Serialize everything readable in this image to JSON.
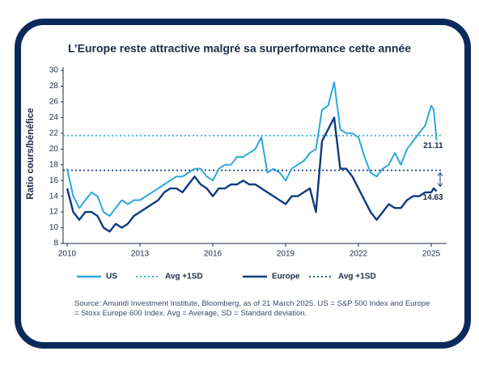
{
  "chart_data": {
    "type": "line",
    "title": "L’Europe reste attractive malgré sa surperformance cette année",
    "y_label": "Ratio cours/bénéfice",
    "source": "Source: Amundi Investment Institute, Bloomberg, as of 21 March 2025. US = S&P 500 Index and Europe = Stoxx Europe 600 Index. Avg = Average, SD = Standard deviation.",
    "x": [
      2010,
      2010.25,
      2010.5,
      2010.75,
      2011,
      2011.25,
      2011.5,
      2011.75,
      2012,
      2012.25,
      2012.5,
      2012.75,
      2013,
      2013.25,
      2013.5,
      2013.75,
      2014,
      2014.25,
      2014.5,
      2014.75,
      2015,
      2015.25,
      2015.5,
      2015.75,
      2016,
      2016.25,
      2016.5,
      2016.75,
      2017,
      2017.25,
      2017.5,
      2017.75,
      2018,
      2018.25,
      2018.5,
      2018.75,
      2019,
      2019.25,
      2019.5,
      2019.75,
      2020,
      2020.25,
      2020.5,
      2020.75,
      2021,
      2021.25,
      2021.5,
      2021.75,
      2022,
      2022.25,
      2022.5,
      2022.75,
      2023,
      2023.25,
      2023.5,
      2023.75,
      2024,
      2024.25,
      2024.5,
      2024.75,
      2025,
      2025.1,
      2025.22
    ],
    "series": [
      {
        "name": "US",
        "color": "#2aa7df",
        "values": [
          17.5,
          14,
          12.5,
          13.5,
          14.5,
          14,
          12,
          11.5,
          12.5,
          13.5,
          13,
          13.5,
          13.5,
          14,
          14.5,
          15,
          15.5,
          16,
          16.5,
          16.5,
          17,
          17.5,
          17.5,
          16.5,
          16,
          17.5,
          18,
          18,
          19,
          19,
          19.5,
          20,
          21.5,
          17,
          17.5,
          17,
          16,
          17.5,
          18,
          18.5,
          19.5,
          20,
          25,
          25.5,
          28.5,
          22.5,
          22,
          22,
          21.5,
          19,
          17,
          16.5,
          17.5,
          18,
          19.5,
          18,
          20,
          21,
          22,
          23,
          25.5,
          25,
          21.11
        ]
      },
      {
        "name": "Europe",
        "color": "#0d3a80",
        "values": [
          15,
          12,
          11,
          12,
          12,
          11.5,
          10,
          9.5,
          10.5,
          10,
          10.5,
          11.5,
          12,
          12.5,
          13,
          13.5,
          14.5,
          15,
          15,
          14.5,
          15.5,
          16.5,
          15.5,
          15,
          14,
          15,
          15,
          15.5,
          15.5,
          16,
          15.5,
          15.5,
          15,
          14.5,
          14,
          13.5,
          13,
          14,
          14,
          14.5,
          15,
          12,
          21,
          22.5,
          24,
          17.5,
          17.5,
          16.5,
          15,
          13.5,
          12,
          11,
          12,
          13,
          12.5,
          12.5,
          13.5,
          14,
          14,
          14.5,
          14.5,
          15,
          14.63
        ]
      }
    ],
    "reference_lines": [
      {
        "name": "Avg +1SD",
        "color": "#2aa7df",
        "value": 21.7
      },
      {
        "name": "Avg +1SD",
        "color": "#0d3a80",
        "value": 17.3
      }
    ],
    "xlim": [
      2010,
      2025.5
    ],
    "xticks": [
      2010,
      2013,
      2016,
      2019,
      2022,
      2025
    ],
    "ylim": [
      8,
      30
    ],
    "yticks": [
      8,
      10,
      12,
      14,
      16,
      18,
      20,
      22,
      24,
      26,
      28,
      30
    ],
    "grid": false
  }
}
